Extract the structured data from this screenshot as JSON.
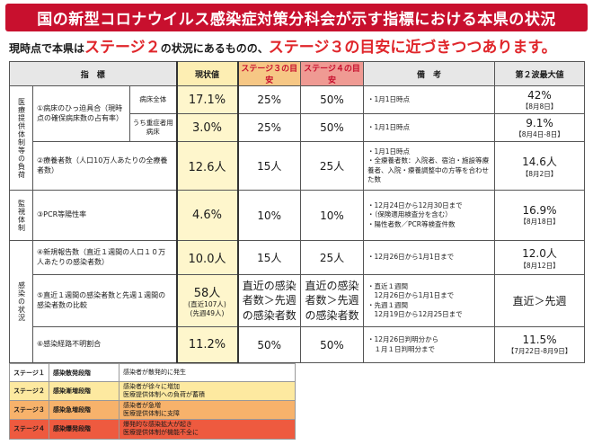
{
  "title": "国の新型コロナウイルス感染症対策分科会が示す指標における本県の状況",
  "subtitle": {
    "part1": "現時点で本県は",
    "stage2": "ステージ２",
    "part2": "の状況にあるものの、",
    "stage3": "ステージ３の目安に近づきつつあります。"
  },
  "headers": {
    "indicator": "指　標",
    "current": "現状値",
    "stage3": "ステージ３の目安",
    "stage4": "ステージ４の目安",
    "remarks": "備　考",
    "peak": "第２波最大値"
  },
  "categories": {
    "medical": "医療提供体制等の負荷",
    "monitoring": "監視体制",
    "infection": "感染の状況"
  },
  "rows": [
    {
      "label": "①病床のひっ迫具合（現時点の確保病床数の占有率）",
      "sub": "病床全体",
      "current": "17.1%",
      "stage3": "25%",
      "stage4": "50%",
      "note": "・1月1日時点",
      "peak": "42%",
      "peak_date": "【8月8日】"
    },
    {
      "sub": "うち重症者用病床",
      "current": "3.0%",
      "stage3": "25%",
      "stage4": "50%",
      "note": "・1月1日時点",
      "peak": "9.1%",
      "peak_date": "【8月4日-8日】"
    },
    {
      "label": "②療養者数（人口10万人あたりの全療養者数）",
      "current": "12.6人",
      "stage3": "15人",
      "stage4": "25人",
      "note": "・1月1日時点\n・全療養者数：入院者、宿泊・施設等療養者、入院・療養調整中の方等を合わせた数",
      "peak": "14.6人",
      "peak_date": "【8月2日】"
    },
    {
      "label": "③PCR等陽性率",
      "current": "4.6%",
      "stage3": "10%",
      "stage4": "10%",
      "note": "・12月24日から12月30日まで\n・（保険適用検査分を含む）\n・陽性者数／PCR等検査件数",
      "peak": "16.9%",
      "peak_date": "【8月18日】"
    },
    {
      "label": "④新規報告数（直近１週間の人口１０万人あたりの感染者数）",
      "current": "10.0人",
      "stage3": "15人",
      "stage4": "25人",
      "note": "・12月26日から1月1日まで",
      "peak": "12.0人",
      "peak_date": "【8月12日】"
    },
    {
      "label": "⑤直近１週間の感染者数と先週１週間の感染者数の比較",
      "current": "58人",
      "current_sub1": "(直近107人)",
      "current_sub2": "(先週49人)",
      "stage3": "直近の感染者数＞先週の感染者数",
      "stage4": "直近の感染者数＞先週の感染者数",
      "note": "・直近１週間\n　12月26日から1月1日まで\n・先週１週間\n　12月19日から12月25日まで",
      "peak": "直近＞先週"
    },
    {
      "label": "⑥感染経路不明割合",
      "current": "11.2%",
      "stage3": "50%",
      "stage4": "50%",
      "note": "・12月26日判明分から\n　１月１日判明分まで",
      "peak": "11.5%",
      "peak_date": "【7月22日-8月9日】"
    }
  ],
  "legend": [
    {
      "stage": "ステージ１",
      "name": "感染散発段階",
      "desc": "感染者が散発的に発生",
      "color": "#ffffff"
    },
    {
      "stage": "ステージ２",
      "name": "感染漸増段階",
      "desc": "感染者が徐々に増加\n医療提供体制への負荷が蓄積",
      "color": "#fde9a0"
    },
    {
      "stage": "ステージ３",
      "name": "感染急増段階",
      "desc": "感染者が急増\n医療提供体制に支障",
      "color": "#f7b26b"
    },
    {
      "stage": "ステージ４",
      "name": "感染爆発段階",
      "desc": "爆発的な感染拡大が起き\n医療提供体制が機能不全に",
      "color": "#ee5a3f"
    }
  ],
  "colors": {
    "banner": "#c8102e",
    "highlight": "#e0262b"
  }
}
